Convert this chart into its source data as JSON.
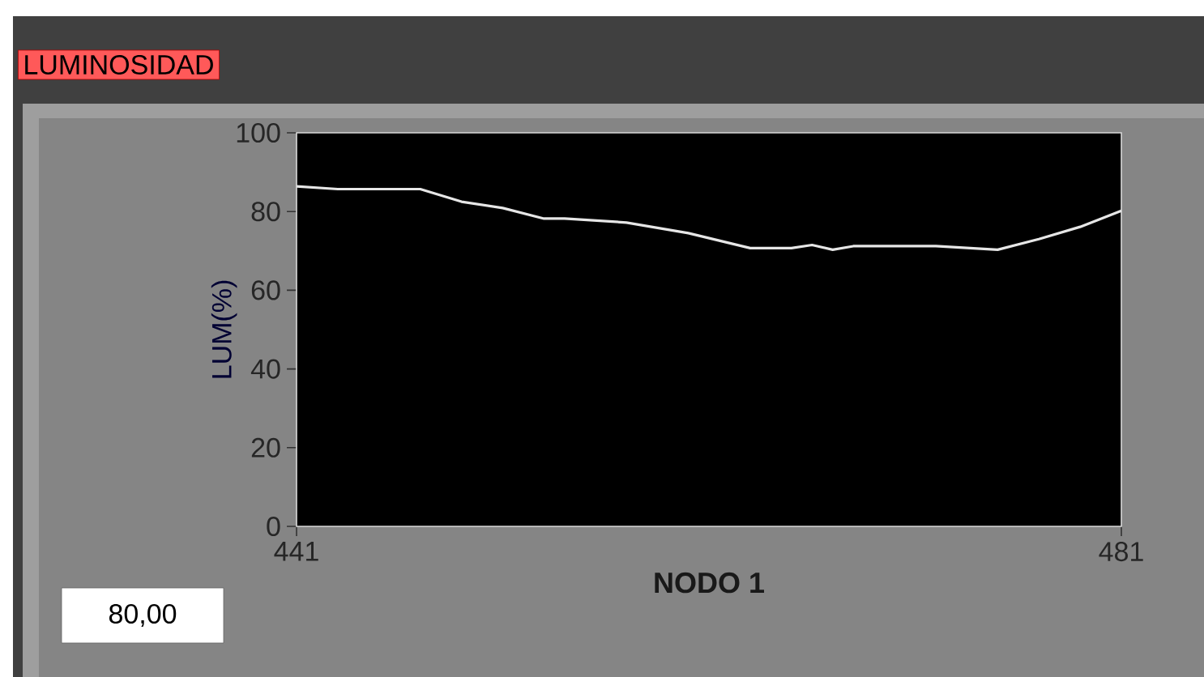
{
  "chart_data": {
    "type": "line",
    "title": "LUMINOSIDAD",
    "xlabel": "NODO 1",
    "ylabel": "LUM(%)",
    "annotations": [
      "80,00"
    ],
    "x": [
      441,
      443,
      447,
      449,
      451,
      453,
      454,
      457,
      460,
      463,
      465,
      466,
      467,
      468,
      472,
      475,
      477,
      479,
      481
    ],
    "series": [
      {
        "color": "#e6e6e6",
        "values": [
          86.4,
          85.7,
          85.7,
          82.5,
          80.9,
          78.2,
          78.2,
          77.2,
          74.5,
          70.7,
          70.7,
          71.5,
          70.3,
          71.2,
          71.2,
          70.3,
          73,
          76.1,
          80.2
        ]
      }
    ],
    "xlim": [
      441,
      481
    ],
    "xticks": [
      441,
      481
    ],
    "ylim": [
      0,
      100
    ],
    "yticks": [
      0,
      20,
      40,
      60,
      80,
      100
    ],
    "grid": false,
    "marker": "none",
    "line_style": "solid"
  }
}
